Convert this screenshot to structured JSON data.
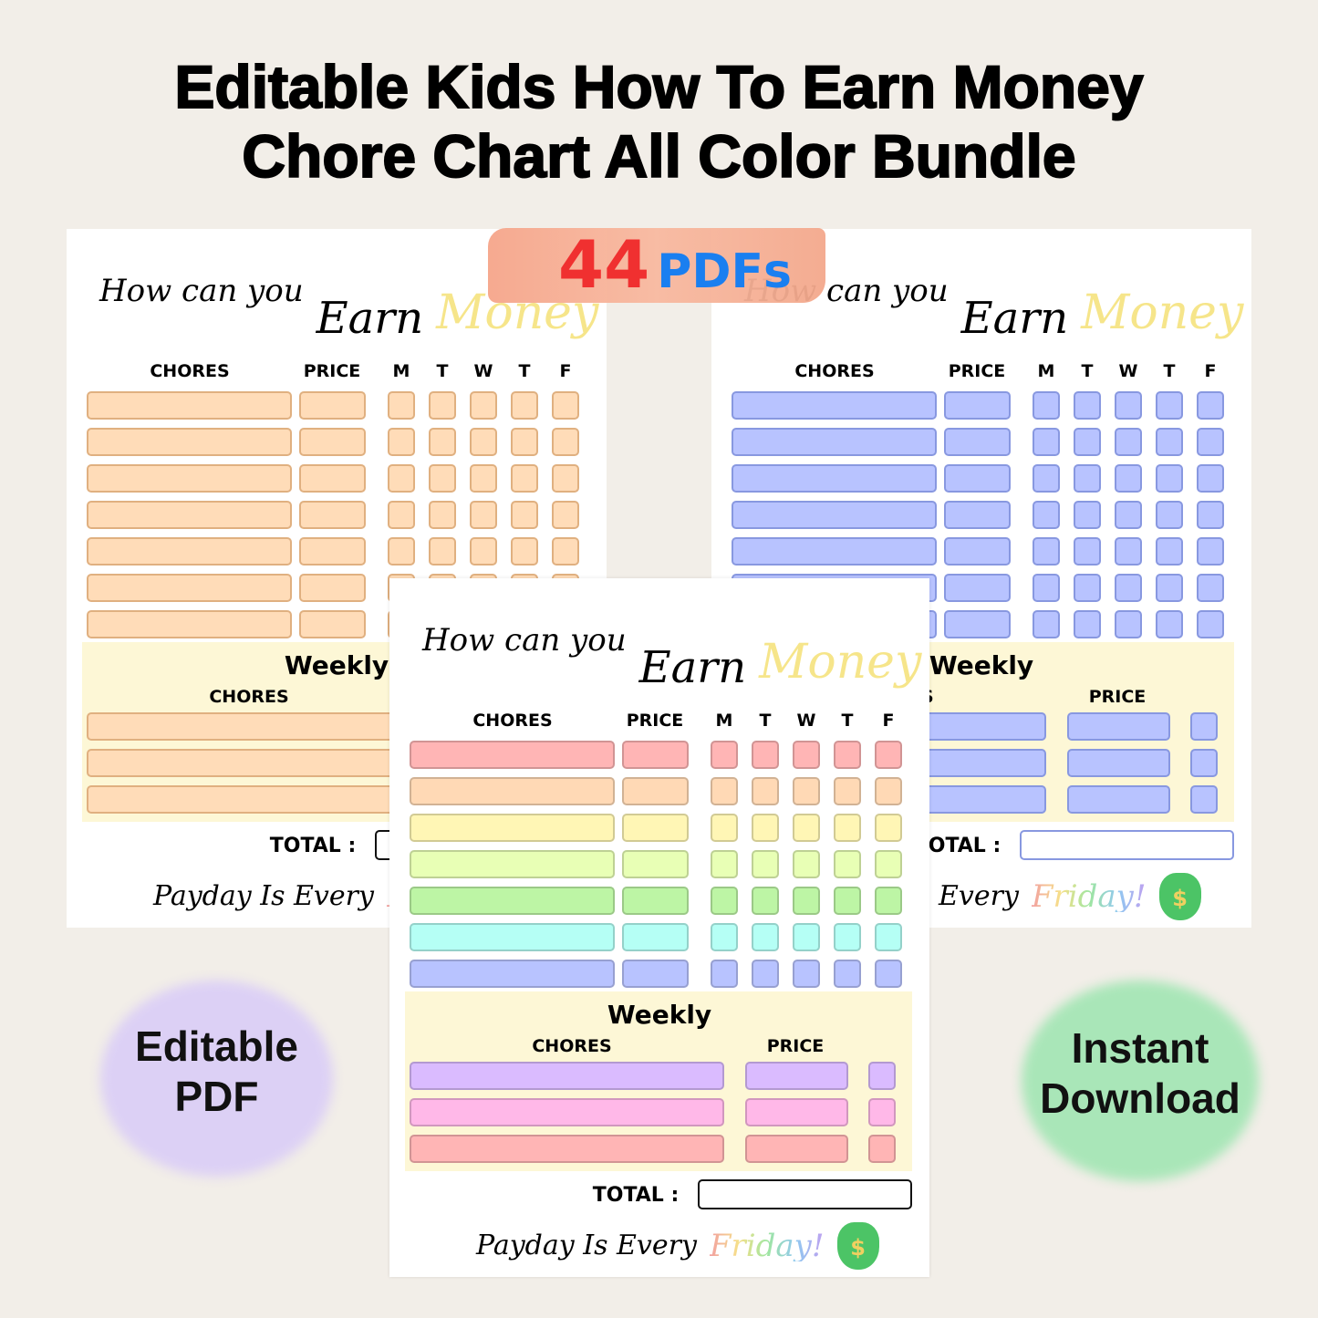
{
  "title": {
    "line1": "Editable Kids How To Earn Money",
    "line2": "Chore Chart All Color Bundle"
  },
  "banner": {
    "count": "44",
    "unit": "PDFs",
    "count_color": "#f03030",
    "unit_color": "#1a7ff0"
  },
  "sheet_text": {
    "how": "How can you",
    "earn": "Earn",
    "money": "Money",
    "chores": "CHORES",
    "price": "PRICE",
    "days": [
      "M",
      "T",
      "W",
      "T",
      "F"
    ],
    "weekly": "Weekly",
    "total": "TOTAL :",
    "payday": "Payday Is Every",
    "friday": "Friday!",
    "bag_icon": "money-bag-icon"
  },
  "sheets": [
    {
      "id": "orange",
      "rows": [
        "#ffdcb8",
        "#ffdcb8",
        "#ffdcb8",
        "#ffdcb8",
        "#ffdcb8",
        "#ffdcb8",
        "#ffdcb8"
      ],
      "borders": "#e0b080",
      "weekly_rows": [
        "#ffdcb8",
        "#ffdcb8",
        "#ffdcb8"
      ]
    },
    {
      "id": "blue",
      "rows": [
        "#b8c3ff",
        "#b8c3ff",
        "#b8c3ff",
        "#b8c3ff",
        "#b8c3ff",
        "#b8c3ff",
        "#b8c3ff"
      ],
      "borders": "#8898e0",
      "weekly_rows": [
        "#b8c3ff",
        "#b8c3ff",
        "#b8c3ff"
      ]
    },
    {
      "id": "rainbow",
      "rows": [
        "#ffb5b5",
        "#ffd9b5",
        "#fff6b5",
        "#e8ffb5",
        "#bdf5a5",
        "#b5fff5",
        "#b8c3ff"
      ],
      "borders": "auto",
      "weekly_rows": [
        "#dabbff",
        "#ffb8e8",
        "#ffb5b5"
      ]
    }
  ],
  "badges": {
    "left": {
      "line1": "Editable",
      "line2": "PDF",
      "color": "#dcd0f5"
    },
    "right": {
      "line1": "Instant",
      "line2": "Download",
      "color": "#a9e6b8"
    }
  }
}
